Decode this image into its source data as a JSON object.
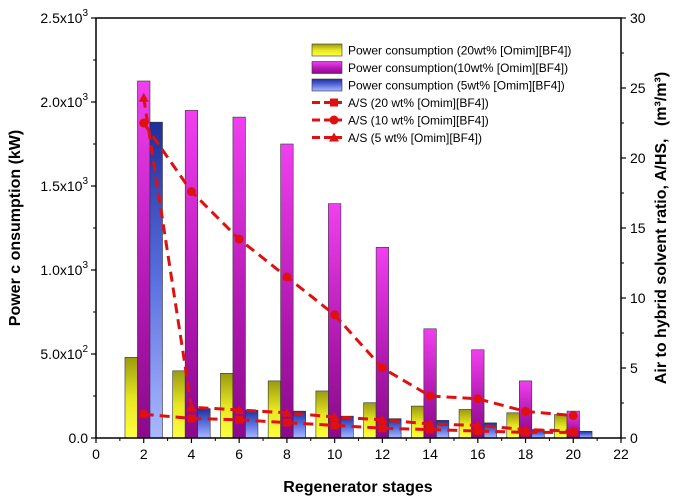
{
  "chart_data": {
    "type": "bar",
    "xlabel": "Regenerator stages",
    "ylabel_left": "Power c onsumption (kW)",
    "ylabel_right": "Air to hybrid solvent ratio, A/HS,",
    "ylabel_right_unit": "(m³/m³)",
    "xlim": [
      0,
      22
    ],
    "x_ticks": [
      "0",
      "2",
      "4",
      "6",
      "8",
      "10",
      "12",
      "14",
      "16",
      "18",
      "20",
      "22"
    ],
    "ylim_left": [
      0,
      2500
    ],
    "y_ticks_left": [
      {
        "mant": "0.0",
        "exp": ""
      },
      {
        "mant": "5.0x10",
        "exp": "2"
      },
      {
        "mant": "1.0x10",
        "exp": "3"
      },
      {
        "mant": "1.5x10",
        "exp": "3"
      },
      {
        "mant": "2.0x10",
        "exp": "3"
      },
      {
        "mant": "2.5x10",
        "exp": "3"
      }
    ],
    "ylim_right": [
      0,
      30
    ],
    "y_ticks_right": [
      "0",
      "5",
      "10",
      "15",
      "20",
      "25",
      "30"
    ],
    "x": [
      2,
      4,
      6,
      8,
      10,
      12,
      14,
      16,
      18,
      20
    ],
    "bar_series": [
      {
        "name": "Power consumption (20wt% [Omim][BF4])",
        "color": "#d4d41a",
        "values": [
          480,
          400,
          385,
          340,
          280,
          210,
          190,
          170,
          150,
          140
        ]
      },
      {
        "name": "Power consumption(10wt% [Omim][BF4])",
        "color": "#e020e0",
        "values": [
          2125,
          1950,
          1910,
          1750,
          1395,
          1135,
          650,
          525,
          340,
          160
        ]
      },
      {
        "name": "Power consumption (5wt% [Omim][BF4])",
        "color": "#3c52c8",
        "values": [
          1880,
          175,
          165,
          160,
          130,
          115,
          105,
          90,
          50,
          40
        ]
      }
    ],
    "line_series": [
      {
        "name": "A/S (20 wt% [Omim][BF4])",
        "marker": "square",
        "color": "#e01010",
        "values": [
          1.7,
          1.4,
          1.3,
          1.1,
          0.9,
          0.7,
          0.6,
          0.5,
          0.4,
          0.4
        ]
      },
      {
        "name": "A/S (10 wt% [Omim][BF4])",
        "marker": "circle",
        "color": "#e01010",
        "values": [
          22.5,
          17.6,
          14.2,
          11.5,
          8.8,
          5.0,
          3.0,
          2.8,
          1.9,
          1.6
        ]
      },
      {
        "name": "A/S (5 wt% [Omim][BF4])",
        "marker": "triangle",
        "color": "#e01010",
        "values": [
          24.3,
          2.2,
          2.0,
          1.8,
          1.5,
          1.3,
          1.0,
          0.9,
          0.6,
          0.5
        ]
      }
    ],
    "legend_position": "top-right",
    "grid": false
  }
}
